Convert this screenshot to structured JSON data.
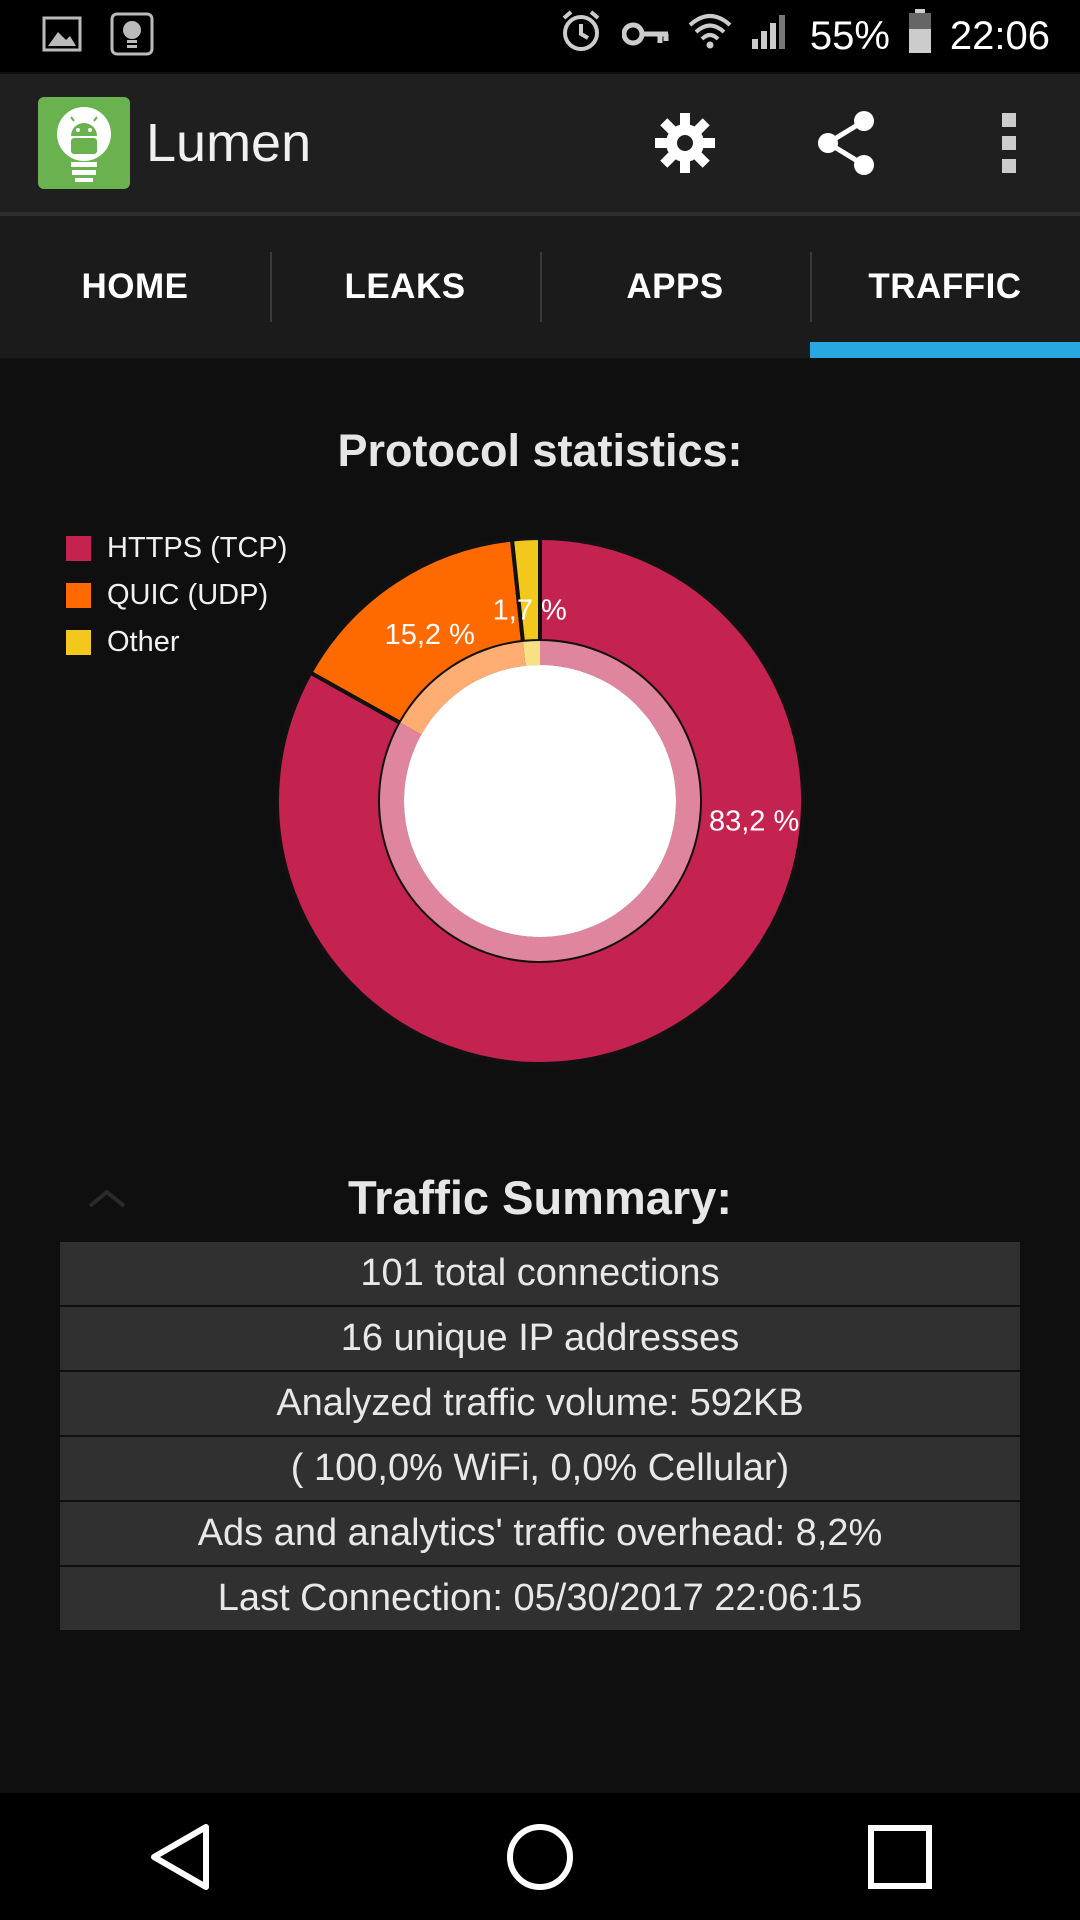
{
  "status_bar": {
    "battery": "55%",
    "time": "22:06"
  },
  "app_bar": {
    "title": "Lumen"
  },
  "tabs": [
    {
      "label": "HOME",
      "active": false
    },
    {
      "label": "LEAKS",
      "active": false
    },
    {
      "label": "APPS",
      "active": false
    },
    {
      "label": "TRAFFIC",
      "active": true
    }
  ],
  "chart_data": {
    "type": "pie",
    "title": "Protocol statistics:",
    "legend_position": "top-left",
    "slices": [
      {
        "label": "HTTPS (TCP)",
        "value": 83.2,
        "display": "83,2 %",
        "color": "#c4234f"
      },
      {
        "label": "QUIC (UDP)",
        "value": 15.2,
        "display": "15,2 %",
        "color": "#ff6a00"
      },
      {
        "label": "Other",
        "value": 1.7,
        "display": "1,7 %",
        "color": "#f3c81c"
      }
    ]
  },
  "summary": {
    "title": "Traffic Summary:",
    "rows": [
      "101 total connections",
      "16 unique IP addresses",
      "Analyzed traffic volume: 592KB",
      "( 100,0% WiFi, 0,0% Cellular)",
      "Ads and analytics' traffic overhead: 8,2%",
      "Last Connection: 05/30/2017 22:06:15"
    ]
  },
  "colors": {
    "accent": "#27a8e0",
    "app_logo": "#6ab24f"
  }
}
